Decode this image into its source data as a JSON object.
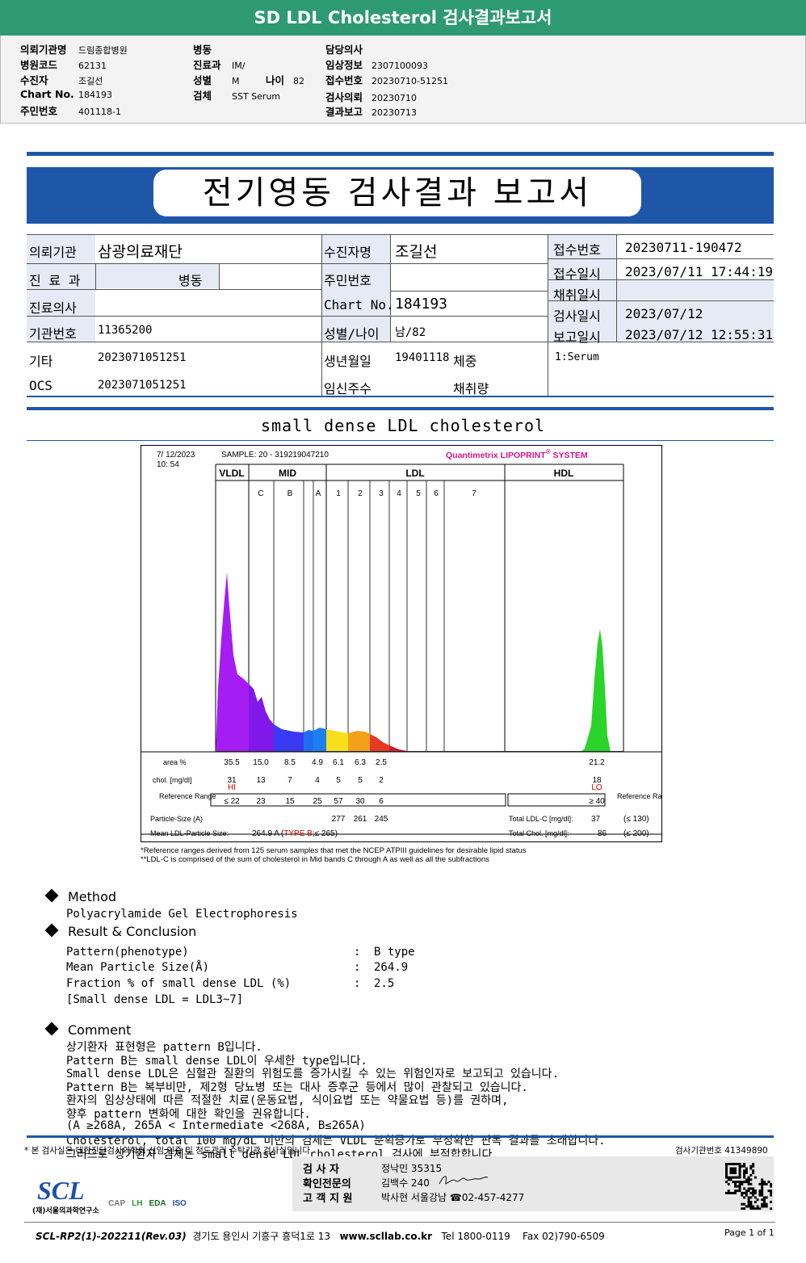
{
  "header": {
    "title": "SD LDL Cholesterol 검사결과보고서",
    "left": [
      {
        "label": "의뢰기관명",
        "value": "드림종합병원"
      },
      {
        "label": "병원코드",
        "value": "62131"
      },
      {
        "label": "수진자",
        "value": "조길선"
      },
      {
        "label": "Chart No.",
        "value": "184193"
      },
      {
        "label": "주민번호",
        "value": "401118-1"
      }
    ],
    "mid": [
      {
        "label": "병동",
        "value": ""
      },
      {
        "label": "진료과",
        "value": "IM/"
      },
      {
        "label": "성별",
        "value": "M"
      },
      {
        "label": "검체",
        "value": "SST Serum"
      }
    ],
    "age_label": "나이",
    "age_value": "82",
    "right": [
      {
        "label": "담당의사",
        "value": ""
      },
      {
        "label": "임상정보",
        "value": "2307100093"
      },
      {
        "label": "접수번호",
        "value": "20230710-51251"
      },
      {
        "label": "검사의뢰",
        "value": "20230710"
      },
      {
        "label": "결과보고",
        "value": "20230713"
      }
    ]
  },
  "report": {
    "title": "전기영동 검사결과 보고서",
    "rows": {
      "institution_label": "의뢰기관",
      "institution": "삼광의료재단",
      "patient_label": "수진자명",
      "patient": "조길선",
      "reception_no_label": "접수번호",
      "reception_no": "20230711-190472",
      "dept_label": "진 료 과",
      "dept": "병동",
      "reception_date_label": "접수일시",
      "reception_date": "2023/07/11 17:44:19",
      "rrn_label": "주민번호",
      "rrn": "",
      "collect_label": "채취일시",
      "collect": "",
      "doctor_label": "진료의사",
      "doctor": "",
      "chart_label": "Chart No.",
      "chart": "184193",
      "test_date_label": "검사일시",
      "test_date": "2023/07/12",
      "inst_no_label": "기관번호",
      "inst_no": "11365200",
      "sexage_label": "성별/나이",
      "sexage": "남/82",
      "report_date_label": "보고일시",
      "report_date": "2023/07/12 12:55:31",
      "etc_label": "기타",
      "etc": "2023071051251",
      "birth_label": "생년월일",
      "birth": "19401118",
      "weight_label": "체중",
      "weight": "",
      "specimen": "1:Serum",
      "ocs_label": "OCS",
      "ocs": "2023071051251",
      "preg_label": "임신주수",
      "preg": "",
      "volume_label": "채취량",
      "volume": ""
    }
  },
  "chart_title": "small dense LDL cholesterol",
  "chart_data": {
    "type": "area",
    "date": "7/ 12/2023",
    "time": "10: 54",
    "sample": "SAMPLE:   20 - 319219047210",
    "brand": "Quantimetrix LIPOPRINT",
    "brand_sup": "®",
    "brand_suffix": " SYSTEM",
    "groups": [
      "VLDL",
      "MID",
      "LDL",
      "HDL"
    ],
    "bands": [
      "C",
      "B",
      "A",
      "1",
      "2",
      "3",
      "4",
      "5",
      "6",
      "7"
    ],
    "row_labels": {
      "area": "area %",
      "chol": "chol. [mg/dl]",
      "ref": "Reference Range",
      "ref_right": "Reference Range",
      "psize": "Particle-Size (A)",
      "mean": "Mean LDL-Particle Size:"
    },
    "area": [
      "35.5",
      "15.0",
      "8.5",
      "4.9",
      "6.1",
      "6.3",
      "2.5",
      "21.2"
    ],
    "chol": [
      "31",
      "13",
      "7",
      "4",
      "5",
      "5",
      "2",
      "18"
    ],
    "flags": {
      "vldl": "HI",
      "hdl": "LO"
    },
    "ref": [
      "≤ 22",
      "23",
      "15",
      "25",
      "57",
      "30",
      "6",
      "≥ 40"
    ],
    "particle_size": [
      "277",
      "261",
      "245"
    ],
    "mean_size": "264.9 A",
    "mean_type": "TYPE B",
    "mean_type_suffix": ";≤ 265)",
    "ldlc": {
      "label": "Total LDL-C [mg/dl]:",
      "value": "37",
      "ref": "(≤ 130)"
    },
    "tchol": {
      "label": "Total Chol. [mg/dl]:",
      "value": "86",
      "ref": "(≤ 200)"
    },
    "footnote1": "*Reference ranges derived from 125 serum samples that met the NCEP ATPIII guidelines for desirable lipid status",
    "footnote2": "**LDL-C is comprised of the sum of cholesterol in Mid bands C through A as well as all the subfractions"
  },
  "method": {
    "heading": "Method",
    "text": "Polyacrylamide Gel Electrophoresis"
  },
  "result": {
    "heading": "Result & Conclusion",
    "rows": [
      {
        "label": "Pattern(phenotype)",
        "value": "B type"
      },
      {
        "label": "Mean Particle Size(Å)",
        "value": "264.9"
      },
      {
        "label": "Fraction % of small dense LDL (%)",
        "value": "2.5"
      }
    ],
    "note": "[Small dense LDL = LDL3~7]"
  },
  "comment": {
    "heading": "Comment",
    "lines": [
      "상기환자 표현형은 pattern B입니다.",
      "Pattern B는 small dense LDL이 우세한 type입니다.",
      "Small dense LDL은 심혈관 질환의 위험도를 증가시킬 수 있는 위험인자로 보고되고 있습니다.",
      "Pattern B는 복부비만, 제2형 당뇨병 또는 대사 증후군 등에서 많이 관찰되고 있습니다.",
      "환자의 임상상태에 따른 적절한 치료(운동요법, 식이요법 또는 약물요법 등)를 권하며,",
      "향후 pattern 변화에 대한 확인을 권유합니다.",
      "(A ≥268A, 265A < Intermediate <268A, B≤265A)",
      "Cholesterol, total 100 mg/dL 미만의 검체는 VLDL 분획증가로 부정확한 판독 결과를 초래합니다.",
      "그러므로 상기환자 검체는 small dense LDL cholesterol 검사에 부적합합니다."
    ]
  },
  "footer": {
    "disclaimer": "* 본 검사실은 대한진단검사의학회 신임 인증 및 정도관리 수탁기관 검사실입니다.",
    "lab_no": "검사기관번호 41349890",
    "tester_label": "검  사  자",
    "tester": "정낙민 35315",
    "confirm_label": "확인전문의",
    "confirm": "김백수 240",
    "support_label": "고 객 지 원",
    "support": "박사현 서울강남 ☎02-457-4277",
    "company": "(재)서울의과학연구소",
    "logo": "SCL",
    "bottom_code": "SCL-RP2(1)-202211(Rev.03)",
    "address": "경기도 용인시 기흥구 흥덕1로 13",
    "website": "www.scllab.co.kr",
    "tel": "Tel 1800-0119",
    "fax": "Fax 02)790-6509",
    "page": "Page 1 of 1",
    "cert_logos": [
      "CAP",
      "LH",
      "EDA",
      "ISO"
    ]
  }
}
